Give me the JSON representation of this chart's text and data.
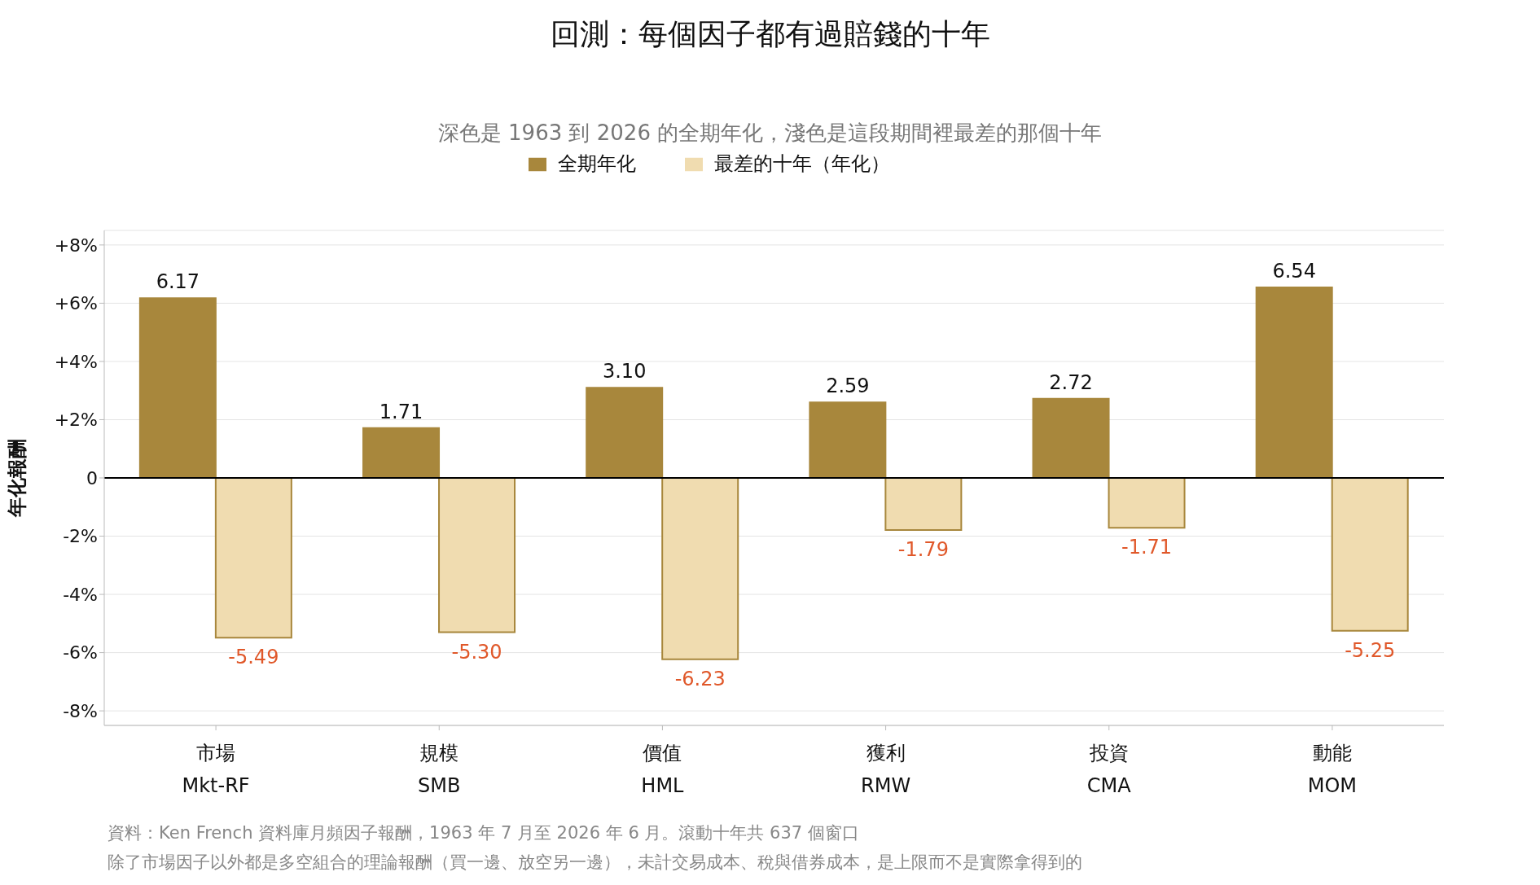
{
  "chart_data": {
    "type": "bar",
    "title": "回測：每個因子都有過賠錢的十年",
    "subtitle": "深色是 1963 到 2026 的全期年化，淺色是這段期間裡最差的那個十年",
    "ylabel": "年化報酬",
    "categories": [
      "市場\nMkt-RF",
      "規模\nSMB",
      "價值\nHML",
      "獲利\nRMW",
      "投資\nCMA",
      "動能\nMOM"
    ],
    "series": [
      {
        "name": "全期年化",
        "color": "#a8873c",
        "values": [
          6.17,
          1.71,
          3.1,
          2.59,
          2.72,
          6.54
        ],
        "value_labels": [
          "6.17",
          "1.71",
          "3.10",
          "2.59",
          "2.72",
          "6.54"
        ]
      },
      {
        "name": "最差的十年（年化）",
        "color": "#f0dcb0",
        "values": [
          -5.49,
          -5.3,
          -6.23,
          -1.79,
          -1.71,
          -5.25
        ],
        "value_labels": [
          "-5.49",
          "-5.30",
          "-6.23",
          "-1.79",
          "-1.71",
          "-5.25"
        ]
      }
    ],
    "ylim": [
      -8.5,
      8.5
    ],
    "yticks": [
      {
        "value": -8,
        "label": "-8%"
      },
      {
        "value": -6,
        "label": "-6%"
      },
      {
        "value": -4,
        "label": "-4%"
      },
      {
        "value": -2,
        "label": "-2%"
      },
      0,
      {
        "value": 2,
        "label": "+2%"
      },
      {
        "value": 4,
        "label": "+4%"
      },
      {
        "value": 6,
        "label": "+6%"
      },
      {
        "value": 8,
        "label": "+8%"
      }
    ],
    "grid": "y",
    "legend": "top",
    "ref_lines": [
      {
        "axis": "y",
        "value": 0,
        "color": "#000000"
      }
    ],
    "annotations": [
      "資料：Ken French 資料庫月頻因子報酬，1963 年 7 月至 2026 年 6 月。滾動十年共 637 個窗口",
      "除了市場因子以外都是多空組合的理論報酬（買一邊、放空另一邊），未計交易成本、稅與借券成本，是上限而不是實際拿得到的"
    ]
  }
}
